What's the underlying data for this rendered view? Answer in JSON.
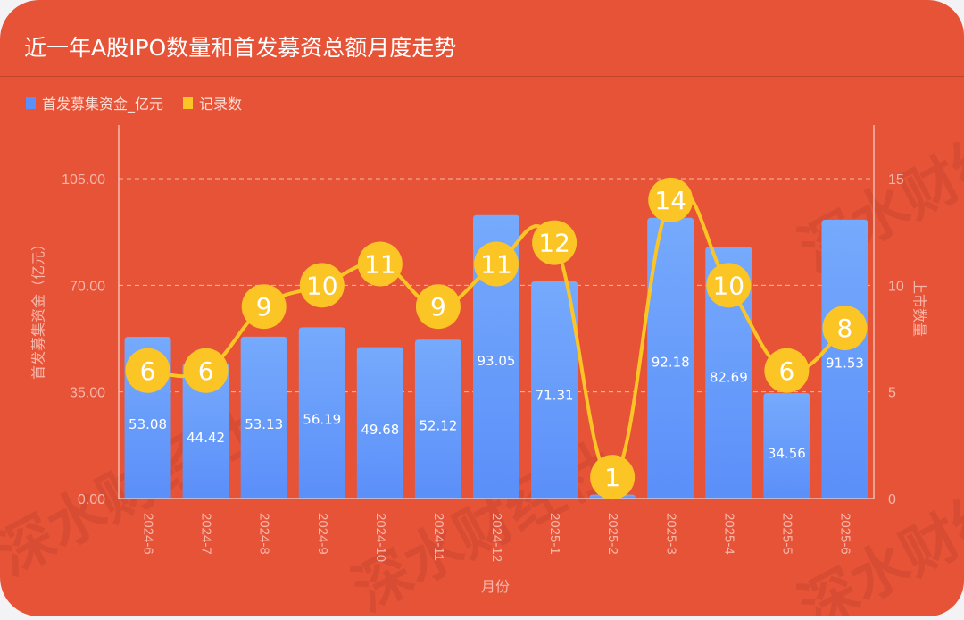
{
  "title": "近一年A股IPO数量和首发募资总额月度走势",
  "legend": [
    {
      "label": "首发募集资金_亿元",
      "color": "#5b8ff9"
    },
    {
      "label": "记录数",
      "color": "#fcc526"
    }
  ],
  "axes": {
    "left_label": "首发募集资金（亿元）",
    "right_label": "上市数量",
    "x_label": "月份",
    "left_ticks": [
      "0.00",
      "35.00",
      "70.00",
      "105.00"
    ],
    "right_ticks": [
      "0",
      "5",
      "10",
      "15"
    ]
  },
  "watermark": "深水财经社",
  "chart_data": {
    "type": "bar+line",
    "title": "近一年A股IPO数量和首发募资总额月度走势",
    "xlabel": "月份",
    "ylabel": "首发募集资金（亿元）",
    "y2label": "上市数量",
    "categories": [
      "2024-6",
      "2024-7",
      "2024-8",
      "2024-9",
      "2024-10",
      "2024-11",
      "2024-12",
      "2025-1",
      "2025-2",
      "2025-3",
      "2025-4",
      "2025-5",
      "2025-6"
    ],
    "series": [
      {
        "name": "首发募集资金_亿元",
        "type": "bar",
        "axis": "left",
        "color": "#5b8ff9",
        "values": [
          53.08,
          44.42,
          53.13,
          56.19,
          49.68,
          52.12,
          93.05,
          71.31,
          1.3,
          92.18,
          82.69,
          34.56,
          91.53
        ],
        "labels": [
          "53.08",
          "44.42",
          "53.13",
          "56.19",
          "49.68",
          "52.12",
          "93.05",
          "71.31",
          "",
          "92.18",
          "82.69",
          "34.56",
          "91.53"
        ]
      },
      {
        "name": "记录数",
        "type": "line",
        "axis": "right",
        "color": "#fcc526",
        "values": [
          6,
          6,
          9,
          10,
          11,
          9,
          11,
          12,
          1,
          14,
          10,
          6,
          8
        ]
      }
    ],
    "ylim": [
      0,
      105
    ],
    "y2lim": [
      0,
      15
    ],
    "grid": "dashed horizontal",
    "legend_position": "top-left"
  }
}
